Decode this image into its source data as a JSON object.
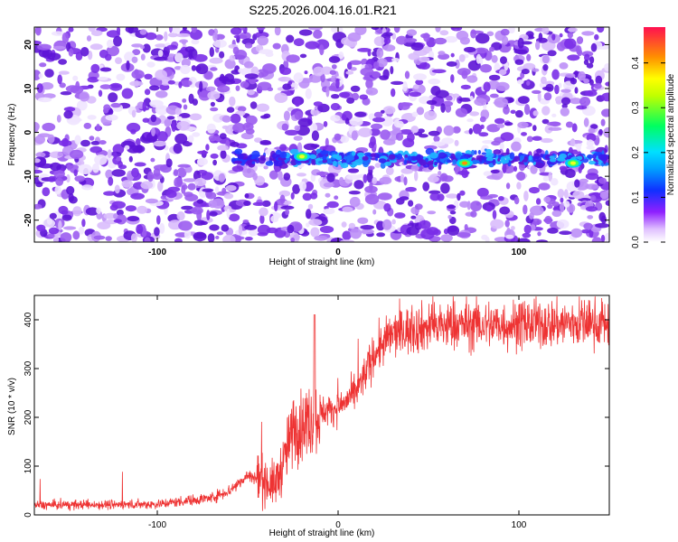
{
  "title": "S225.2026.004.16.01.R21",
  "chart_data": [
    {
      "type": "heatmap",
      "xlabel": "Height of straight line (km)",
      "ylabel": "Frequency (Hz)",
      "xlim": [
        -168,
        150
      ],
      "ylim": [
        -25,
        24
      ],
      "x_ticks": [
        "-100",
        "0",
        "100"
      ],
      "y_ticks": [
        "20",
        "10",
        "0",
        "-10",
        "-20"
      ],
      "colorbar": {
        "label": "Normalized spectral amplitude",
        "range": [
          0.0,
          0.48
        ],
        "ticks": [
          "0.0",
          "0.1",
          "0.2",
          "0.3",
          "0.4"
        ],
        "colors": [
          "#ffffff",
          "#8f20ff",
          "#1030ff",
          "#00e0ff",
          "#00ff40",
          "#ffff00",
          "#ff8000",
          "#ff1050"
        ]
      },
      "ridge_frequency_hz": -6,
      "peaks": [
        {
          "x": -20,
          "y": -5.5,
          "value": 0.3
        },
        {
          "x": 70,
          "y": -7,
          "value": 0.35
        },
        {
          "x": 130,
          "y": -7,
          "value": 0.22
        }
      ]
    },
    {
      "type": "line",
      "xlabel": "Height of straight line (km)",
      "ylabel": "SNR (10 * v/v)",
      "xlim": [
        -168,
        150
      ],
      "ylim": [
        0,
        450
      ],
      "x_ticks": [
        "-100",
        "0",
        "100"
      ],
      "y_ticks": [
        "0",
        "100",
        "200",
        "300",
        "400"
      ],
      "color": "#ee3333",
      "series": [
        {
          "x": [
            -168,
            -100,
            -70,
            -60,
            -50,
            -40,
            -35,
            -30,
            -25,
            -20,
            -15,
            -10,
            0,
            10,
            20,
            30,
            40,
            50,
            70,
            100,
            150
          ],
          "values": [
            20,
            22,
            35,
            50,
            80,
            70,
            60,
            110,
            175,
            185,
            195,
            210,
            220,
            250,
            330,
            370,
            380,
            385,
            390,
            390,
            395
          ]
        }
      ]
    }
  ]
}
